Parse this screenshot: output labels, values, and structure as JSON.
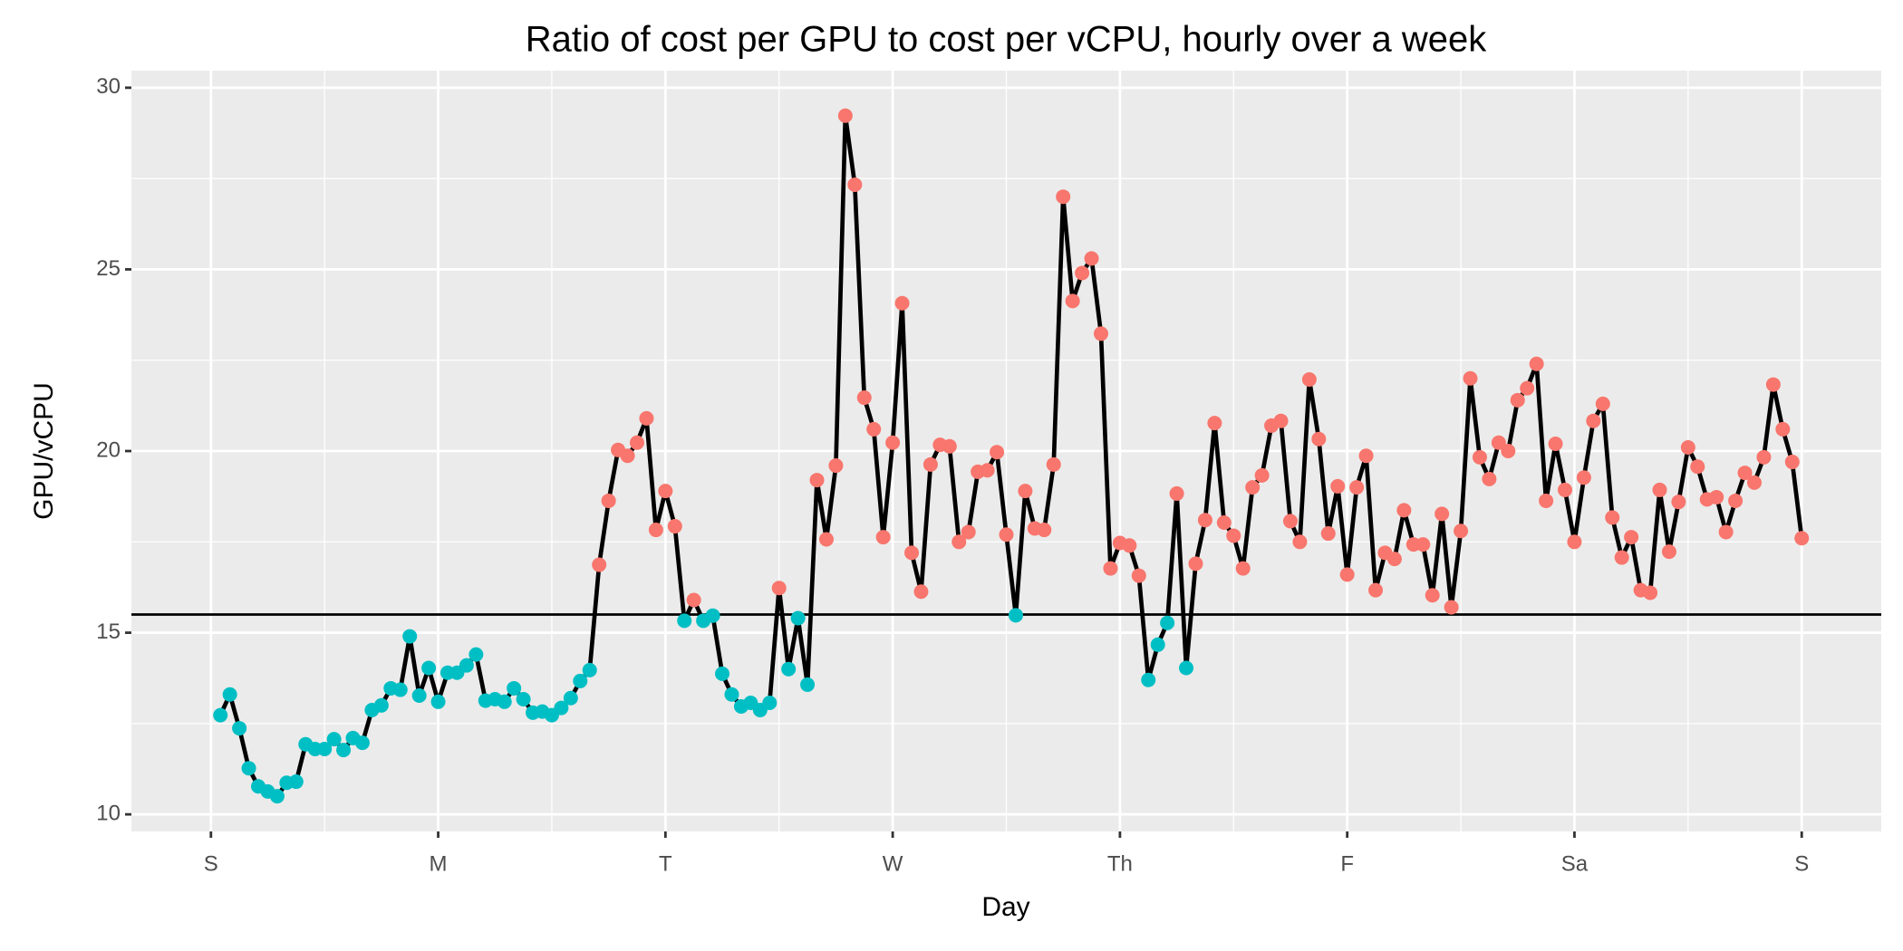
{
  "chart_data": {
    "type": "line",
    "title": "Ratio of cost per GPU to cost per vCPU, hourly over a week",
    "x_label": "Day",
    "y_label": "GPU/vCPU",
    "x": [
      1,
      2,
      3,
      4,
      5,
      6,
      7,
      8,
      9,
      10,
      11,
      12,
      13,
      14,
      15,
      16,
      17,
      18,
      19,
      20,
      21,
      22,
      23,
      24,
      25,
      26,
      27,
      28,
      29,
      30,
      31,
      32,
      33,
      34,
      35,
      36,
      37,
      38,
      39,
      40,
      41,
      42,
      43,
      44,
      45,
      46,
      47,
      48,
      49,
      50,
      51,
      52,
      53,
      54,
      55,
      56,
      57,
      58,
      59,
      60,
      61,
      62,
      63,
      64,
      65,
      66,
      67,
      68,
      69,
      70,
      71,
      72,
      73,
      74,
      75,
      76,
      77,
      78,
      79,
      80,
      81,
      82,
      83,
      84,
      85,
      86,
      87,
      88,
      89,
      90,
      91,
      92,
      93,
      94,
      95,
      96,
      97,
      98,
      99,
      100,
      101,
      102,
      103,
      104,
      105,
      106,
      107,
      108,
      109,
      110,
      111,
      112,
      113,
      114,
      115,
      116,
      117,
      118,
      119,
      120,
      121,
      122,
      123,
      124,
      125,
      126,
      127,
      128,
      129,
      130,
      131,
      132,
      133,
      134,
      135,
      136,
      137,
      138,
      139,
      140,
      141,
      142,
      143,
      144,
      145,
      146,
      147,
      148,
      149,
      150,
      151,
      152,
      153,
      154,
      155,
      156,
      157,
      158,
      159,
      160,
      161,
      162,
      163,
      164,
      165,
      166,
      167,
      168
    ],
    "values": [
      12.73,
      13.3,
      12.37,
      11.27,
      10.77,
      10.63,
      10.5,
      10.87,
      10.9,
      11.93,
      11.8,
      11.8,
      12.07,
      11.77,
      12.1,
      11.97,
      12.87,
      13.0,
      13.47,
      13.43,
      14.9,
      13.27,
      14.03,
      13.1,
      13.9,
      13.9,
      14.1,
      14.4,
      13.13,
      13.17,
      13.1,
      13.47,
      13.17,
      12.8,
      12.83,
      12.73,
      12.93,
      13.2,
      13.67,
      13.97,
      16.87,
      18.63,
      20.03,
      19.87,
      20.23,
      20.9,
      17.83,
      18.9,
      17.93,
      15.33,
      15.9,
      15.33,
      15.47,
      13.87,
      13.3,
      12.97,
      13.07,
      12.87,
      13.07,
      16.23,
      14.0,
      15.4,
      13.57,
      19.2,
      17.57,
      19.6,
      29.23,
      27.33,
      21.47,
      20.6,
      17.63,
      20.23,
      24.07,
      17.2,
      16.13,
      19.63,
      20.17,
      20.13,
      17.5,
      17.77,
      19.43,
      19.47,
      19.97,
      17.7,
      15.48,
      18.9,
      17.87,
      17.83,
      19.63,
      27.0,
      24.13,
      24.9,
      25.3,
      23.23,
      16.77,
      17.47,
      17.4,
      16.57,
      13.7,
      14.67,
      15.27,
      18.83,
      14.03,
      16.9,
      18.1,
      20.77,
      18.03,
      17.67,
      16.77,
      19.0,
      19.33,
      20.7,
      20.83,
      18.07,
      17.5,
      21.97,
      20.33,
      17.73,
      19.03,
      16.6,
      19.0,
      19.87,
      16.17,
      17.2,
      17.03,
      18.37,
      17.43,
      17.43,
      16.03,
      18.27,
      15.7,
      17.8,
      22.0,
      19.83,
      19.23,
      20.23,
      20.0,
      21.4,
      21.73,
      22.4,
      18.63,
      20.2,
      18.93,
      17.5,
      19.27,
      20.83,
      21.3,
      18.17,
      17.07,
      17.63,
      16.17,
      16.1,
      18.93,
      17.23,
      18.6,
      20.1,
      19.57,
      18.67,
      18.73,
      17.77,
      18.63,
      19.4,
      19.13,
      19.83,
      21.83,
      20.6,
      19.7,
      17.6
    ],
    "line_color": "#000000",
    "threshold": 15.5,
    "above_color": "#F8766D",
    "below_color": "#00BFC4",
    "xlim": [
      -8.4,
      176.4
    ],
    "xticks": [
      {
        "value": 0,
        "label": "S"
      },
      {
        "value": 24,
        "label": "M"
      },
      {
        "value": 48,
        "label": "T"
      },
      {
        "value": 72,
        "label": "W"
      },
      {
        "value": 96,
        "label": "Th"
      },
      {
        "value": 120,
        "label": "F"
      },
      {
        "value": 144,
        "label": "Sa"
      },
      {
        "value": 168,
        "label": "S"
      }
    ],
    "ylim": [
      9.53,
      30.47
    ],
    "yticks": [
      10,
      15,
      20,
      25,
      30
    ],
    "grid": true
  }
}
